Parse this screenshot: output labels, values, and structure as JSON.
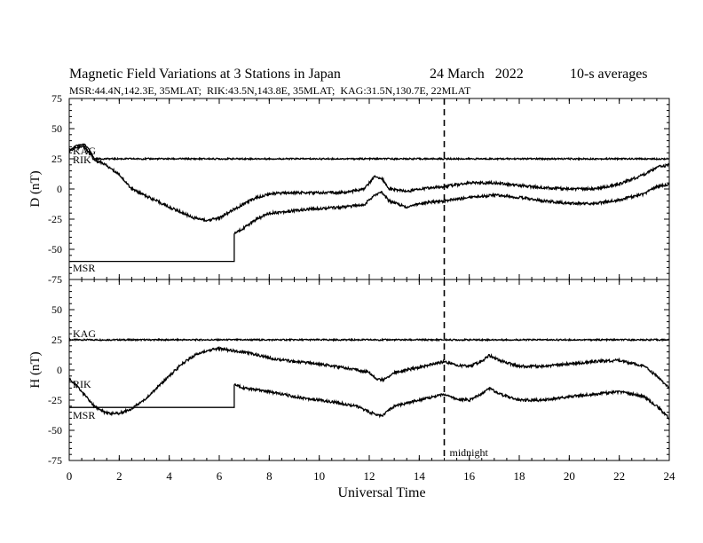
{
  "header": {
    "title": "Magnetic Field Variations at 3 Stations in Japan",
    "date": "24 March   2022",
    "averaging": "10-s averages",
    "stations_line": "MSR:44.4N,142.3E, 35MLAT;  RIK:43.5N,143.8E, 35MLAT;  KAG:31.5N,130.7E, 22MLAT"
  },
  "chart_data": [
    {
      "type": "line",
      "panel": "D",
      "ylabel": "D (nT)",
      "ylim": [
        -75,
        75
      ],
      "yticks": [
        "75",
        "50",
        "25",
        "0",
        "-25",
        "-50",
        "-75"
      ],
      "xlim": [
        0,
        24
      ],
      "series": [
        {
          "name": "KAG",
          "x": [
            0,
            0.3,
            0.6,
            0.8,
            1.0,
            24
          ],
          "y": [
            32,
            36,
            37,
            33,
            25,
            25
          ]
        },
        {
          "name": "RIK",
          "x": [
            0,
            0.3,
            0.6,
            0.8,
            1.0,
            1.3,
            2.0,
            2.5,
            3,
            4,
            5,
            5.5,
            6,
            6.5,
            7,
            7.5,
            8,
            9,
            10,
            11,
            11.8,
            12.2,
            12.5,
            12.8,
            13.5,
            14,
            15,
            16,
            17,
            18,
            19,
            20,
            21,
            22,
            23,
            23.5,
            24
          ],
          "y": [
            32,
            34,
            35,
            30,
            24,
            22,
            12,
            0,
            -5,
            -15,
            -24,
            -26,
            -24,
            -18,
            -12,
            -7,
            -4,
            -3,
            -3,
            -3,
            0,
            10,
            9,
            0,
            -2,
            0,
            2,
            5,
            5,
            3,
            1,
            0,
            0,
            4,
            12,
            18,
            20
          ]
        },
        {
          "name": "MSR",
          "x": [
            0,
            6.6,
            6.6,
            7,
            7.5,
            8,
            9,
            10,
            11,
            11.8,
            12.2,
            12.5,
            12.8,
            13.5,
            14,
            15,
            16,
            17,
            18,
            19,
            20,
            21,
            22,
            23,
            23.5,
            24
          ],
          "y": [
            -60,
            -60,
            -37,
            -32,
            -25,
            -20,
            -18,
            -16,
            -15,
            -13,
            -5,
            -3,
            -10,
            -15,
            -12,
            -10,
            -7,
            -5,
            -7,
            -10,
            -12,
            -12,
            -9,
            -4,
            2,
            4
          ]
        }
      ],
      "annotations": [
        "KAG",
        "RIK",
        "MSR"
      ]
    },
    {
      "type": "line",
      "panel": "H",
      "ylabel": "H (nT)",
      "ylim": [
        -75,
        75
      ],
      "yticks": [
        "75",
        "50",
        "25",
        "0",
        "-25",
        "-50",
        "-75"
      ],
      "xlim": [
        0,
        24
      ],
      "xlabel": "Universal Time",
      "xticks": [
        "0",
        "2",
        "4",
        "6",
        "8",
        "10",
        "12",
        "14",
        "16",
        "18",
        "20",
        "22",
        "24"
      ],
      "series": [
        {
          "name": "KAG",
          "x": [
            0,
            24
          ],
          "y": [
            25,
            25
          ]
        },
        {
          "name": "RIK",
          "x": [
            0,
            0.5,
            1.0,
            1.5,
            2.0,
            2.5,
            3,
            3.5,
            4,
            4.5,
            5,
            5.5,
            6,
            6.5,
            7,
            8,
            9,
            10,
            11,
            12,
            12.3,
            12.6,
            13,
            14,
            15,
            15.5,
            16,
            16.5,
            16.8,
            17.2,
            18,
            19,
            20,
            21,
            22,
            23,
            23.5,
            24
          ],
          "y": [
            -7,
            -18,
            -30,
            -36,
            -36,
            -32,
            -25,
            -15,
            -5,
            5,
            12,
            16,
            18,
            16,
            15,
            10,
            7,
            5,
            2,
            -2,
            -8,
            -8,
            -2,
            2,
            7,
            4,
            3,
            7,
            12,
            8,
            3,
            3,
            5,
            7,
            8,
            3,
            -5,
            -15
          ]
        },
        {
          "name": "MSR",
          "x": [
            0,
            6.6,
            6.6,
            7,
            8,
            9,
            10,
            11,
            11.5,
            12,
            12.5,
            13,
            14,
            15,
            15.5,
            16,
            16.5,
            16.8,
            17.2,
            18,
            19,
            20,
            21,
            22,
            23,
            23.5,
            24
          ],
          "y": [
            -31,
            -31,
            -12,
            -15,
            -18,
            -22,
            -25,
            -28,
            -30,
            -35,
            -38,
            -30,
            -25,
            -20,
            -24,
            -25,
            -20,
            -15,
            -20,
            -25,
            -25,
            -22,
            -20,
            -18,
            -22,
            -30,
            -40
          ]
        }
      ],
      "annotations": [
        "KAG",
        "RIK",
        "MSR",
        "midnight"
      ]
    }
  ],
  "midnight_ut": 15,
  "colors": {
    "line": "#000000",
    "background": "#ffffff"
  }
}
